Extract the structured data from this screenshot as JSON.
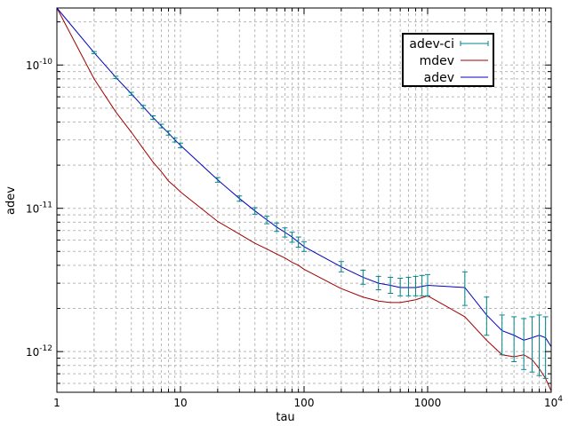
{
  "chart_data": {
    "type": "line",
    "xlabel": "tau",
    "ylabel": "adev",
    "xscale": "log",
    "yscale": "log",
    "xlim": [
      1,
      10000
    ],
    "ylim": [
      5.2e-13,
      2.5e-10
    ],
    "grid": true,
    "legend_position": "top-right",
    "x_tick_labels": [
      {
        "value": 1,
        "base": "1",
        "exp": ""
      },
      {
        "value": 10,
        "base": "10",
        "exp": ""
      },
      {
        "value": 100,
        "base": "100",
        "exp": ""
      },
      {
        "value": 1000,
        "base": "1000",
        "exp": ""
      },
      {
        "value": 10000,
        "base": "10",
        "exp": "4"
      }
    ],
    "y_tick_labels": [
      {
        "value": 1e-10,
        "base": "10",
        "exp": "-10"
      },
      {
        "value": 1e-11,
        "base": "10",
        "exp": "-11"
      },
      {
        "value": 1e-12,
        "base": "10",
        "exp": "-12"
      }
    ],
    "series": [
      {
        "name": "adev-ci",
        "color": "#00868b",
        "kind": "errorbars",
        "points": [
          {
            "x": 2,
            "y": 1.22e-10,
            "lo": 1.2e-10,
            "hi": 1.24e-10
          },
          {
            "x": 3,
            "y": 8.2e-11,
            "lo": 8.05e-11,
            "hi": 8.35e-11
          },
          {
            "x": 4,
            "y": 6.3e-11,
            "lo": 6.15e-11,
            "hi": 6.45e-11
          },
          {
            "x": 5,
            "y": 5.1e-11,
            "lo": 4.98e-11,
            "hi": 5.22e-11
          },
          {
            "x": 6,
            "y": 4.3e-11,
            "lo": 4.18e-11,
            "hi": 4.42e-11
          },
          {
            "x": 7,
            "y": 3.75e-11,
            "lo": 3.64e-11,
            "hi": 3.86e-11
          },
          {
            "x": 8,
            "y": 3.35e-11,
            "lo": 3.24e-11,
            "hi": 3.46e-11
          },
          {
            "x": 9,
            "y": 3e-11,
            "lo": 2.9e-11,
            "hi": 3.1e-11
          },
          {
            "x": 10,
            "y": 2.75e-11,
            "lo": 2.65e-11,
            "hi": 2.85e-11
          },
          {
            "x": 20,
            "y": 1.58e-11,
            "lo": 1.52e-11,
            "hi": 1.64e-11
          },
          {
            "x": 30,
            "y": 1.17e-11,
            "lo": 1.12e-11,
            "hi": 1.22e-11
          },
          {
            "x": 40,
            "y": 9.6e-12,
            "lo": 9.1e-12,
            "hi": 1.01e-11
          },
          {
            "x": 50,
            "y": 8.3e-12,
            "lo": 7.8e-12,
            "hi": 8.8e-12
          },
          {
            "x": 60,
            "y": 7.4e-12,
            "lo": 6.9e-12,
            "hi": 7.9e-12
          },
          {
            "x": 70,
            "y": 6.8e-12,
            "lo": 6.3e-12,
            "hi": 7.3e-12
          },
          {
            "x": 80,
            "y": 6.3e-12,
            "lo": 5.8e-12,
            "hi": 6.8e-12
          },
          {
            "x": 90,
            "y": 5.8e-12,
            "lo": 5.35e-12,
            "hi": 6.3e-12
          },
          {
            "x": 100,
            "y": 5.4e-12,
            "lo": 5e-12,
            "hi": 5.85e-12
          },
          {
            "x": 200,
            "y": 3.9e-12,
            "lo": 3.6e-12,
            "hi": 4.25e-12
          },
          {
            "x": 300,
            "y": 3.3e-12,
            "lo": 2.95e-12,
            "hi": 3.7e-12
          },
          {
            "x": 400,
            "y": 3e-12,
            "lo": 2.7e-12,
            "hi": 3.35e-12
          },
          {
            "x": 500,
            "y": 2.9e-12,
            "lo": 2.55e-12,
            "hi": 3.3e-12
          },
          {
            "x": 600,
            "y": 2.8e-12,
            "lo": 2.45e-12,
            "hi": 3.25e-12
          },
          {
            "x": 700,
            "y": 2.8e-12,
            "lo": 2.45e-12,
            "hi": 3.3e-12
          },
          {
            "x": 800,
            "y": 2.8e-12,
            "lo": 2.45e-12,
            "hi": 3.35e-12
          },
          {
            "x": 900,
            "y": 2.85e-12,
            "lo": 2.45e-12,
            "hi": 3.4e-12
          },
          {
            "x": 1000,
            "y": 2.9e-12,
            "lo": 2.45e-12,
            "hi": 3.45e-12
          },
          {
            "x": 2000,
            "y": 2.8e-12,
            "lo": 2.1e-12,
            "hi": 3.6e-12
          },
          {
            "x": 3000,
            "y": 1.8e-12,
            "lo": 1.3e-12,
            "hi": 2.4e-12
          },
          {
            "x": 4000,
            "y": 1.4e-12,
            "lo": 9.5e-13,
            "hi": 1.8e-12
          },
          {
            "x": 5000,
            "y": 1.3e-12,
            "lo": 8.5e-13,
            "hi": 1.75e-12
          },
          {
            "x": 6000,
            "y": 1.2e-12,
            "lo": 7.5e-13,
            "hi": 1.7e-12
          },
          {
            "x": 7000,
            "y": 1.25e-12,
            "lo": 7.2e-13,
            "hi": 1.75e-12
          },
          {
            "x": 8000,
            "y": 1.3e-12,
            "lo": 6.8e-13,
            "hi": 1.8e-12
          },
          {
            "x": 9000,
            "y": 1.25e-12,
            "lo": 6.5e-13,
            "hi": 1.75e-12
          }
        ]
      },
      {
        "name": "mdev",
        "color": "#a00000",
        "kind": "line",
        "points": [
          {
            "x": 1,
            "y": 2.5e-10
          },
          {
            "x": 2,
            "y": 8e-11
          },
          {
            "x": 3,
            "y": 4.7e-11
          },
          {
            "x": 4,
            "y": 3.4e-11
          },
          {
            "x": 5,
            "y": 2.6e-11
          },
          {
            "x": 6,
            "y": 2.1e-11
          },
          {
            "x": 7,
            "y": 1.8e-11
          },
          {
            "x": 8,
            "y": 1.55e-11
          },
          {
            "x": 9,
            "y": 1.42e-11
          },
          {
            "x": 10,
            "y": 1.3e-11
          },
          {
            "x": 20,
            "y": 8.1e-12
          },
          {
            "x": 30,
            "y": 6.6e-12
          },
          {
            "x": 40,
            "y": 5.7e-12
          },
          {
            "x": 50,
            "y": 5.2e-12
          },
          {
            "x": 60,
            "y": 4.8e-12
          },
          {
            "x": 70,
            "y": 4.5e-12
          },
          {
            "x": 80,
            "y": 4.2e-12
          },
          {
            "x": 90,
            "y": 4e-12
          },
          {
            "x": 100,
            "y": 3.75e-12
          },
          {
            "x": 200,
            "y": 2.75e-12
          },
          {
            "x": 300,
            "y": 2.4e-12
          },
          {
            "x": 400,
            "y": 2.25e-12
          },
          {
            "x": 500,
            "y": 2.2e-12
          },
          {
            "x": 600,
            "y": 2.2e-12
          },
          {
            "x": 700,
            "y": 2.25e-12
          },
          {
            "x": 800,
            "y": 2.3e-12
          },
          {
            "x": 900,
            "y": 2.38e-12
          },
          {
            "x": 1000,
            "y": 2.45e-12
          },
          {
            "x": 2000,
            "y": 1.75e-12
          },
          {
            "x": 3000,
            "y": 1.2e-12
          },
          {
            "x": 4000,
            "y": 9.5e-13
          },
          {
            "x": 5000,
            "y": 9.2e-13
          },
          {
            "x": 6000,
            "y": 9.5e-13
          },
          {
            "x": 7000,
            "y": 8.8e-13
          },
          {
            "x": 8000,
            "y": 7.6e-13
          },
          {
            "x": 9000,
            "y": 6.5e-13
          },
          {
            "x": 10000,
            "y": 5.3e-13
          }
        ]
      },
      {
        "name": "adev",
        "color": "#0000c0",
        "kind": "line",
        "points": [
          {
            "x": 1,
            "y": 2.5e-10
          },
          {
            "x": 2,
            "y": 1.22e-10
          },
          {
            "x": 3,
            "y": 8.2e-11
          },
          {
            "x": 4,
            "y": 6.3e-11
          },
          {
            "x": 5,
            "y": 5.1e-11
          },
          {
            "x": 6,
            "y": 4.3e-11
          },
          {
            "x": 7,
            "y": 3.75e-11
          },
          {
            "x": 8,
            "y": 3.35e-11
          },
          {
            "x": 9,
            "y": 3e-11
          },
          {
            "x": 10,
            "y": 2.75e-11
          },
          {
            "x": 20,
            "y": 1.58e-11
          },
          {
            "x": 30,
            "y": 1.17e-11
          },
          {
            "x": 40,
            "y": 9.6e-12
          },
          {
            "x": 50,
            "y": 8.3e-12
          },
          {
            "x": 60,
            "y": 7.4e-12
          },
          {
            "x": 70,
            "y": 6.8e-12
          },
          {
            "x": 80,
            "y": 6.3e-12
          },
          {
            "x": 90,
            "y": 5.8e-12
          },
          {
            "x": 100,
            "y": 5.4e-12
          },
          {
            "x": 200,
            "y": 3.9e-12
          },
          {
            "x": 300,
            "y": 3.3e-12
          },
          {
            "x": 400,
            "y": 3e-12
          },
          {
            "x": 500,
            "y": 2.9e-12
          },
          {
            "x": 600,
            "y": 2.8e-12
          },
          {
            "x": 700,
            "y": 2.8e-12
          },
          {
            "x": 800,
            "y": 2.8e-12
          },
          {
            "x": 900,
            "y": 2.85e-12
          },
          {
            "x": 1000,
            "y": 2.9e-12
          },
          {
            "x": 2000,
            "y": 2.8e-12
          },
          {
            "x": 3000,
            "y": 1.8e-12
          },
          {
            "x": 4000,
            "y": 1.4e-12
          },
          {
            "x": 5000,
            "y": 1.3e-12
          },
          {
            "x": 6000,
            "y": 1.2e-12
          },
          {
            "x": 7000,
            "y": 1.25e-12
          },
          {
            "x": 8000,
            "y": 1.3e-12
          },
          {
            "x": 9000,
            "y": 1.25e-12
          },
          {
            "x": 10000,
            "y": 1.08e-12
          }
        ]
      }
    ]
  }
}
